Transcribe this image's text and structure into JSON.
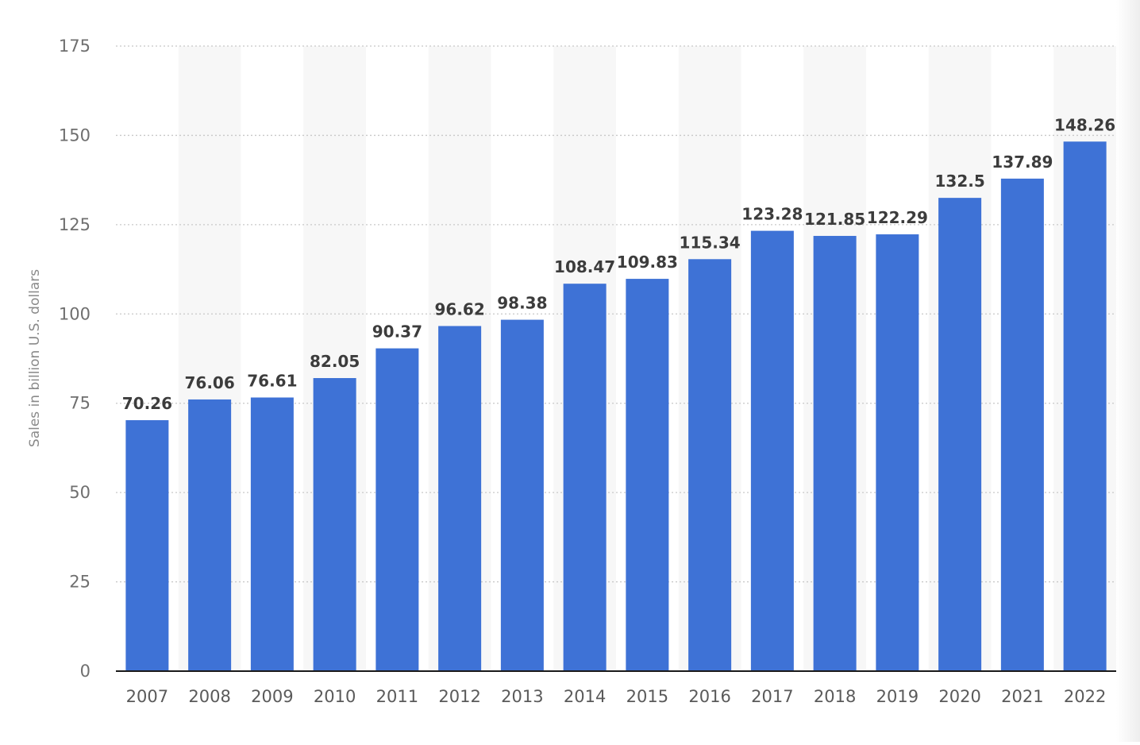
{
  "chart_data": {
    "type": "bar",
    "title": "",
    "xlabel": "",
    "ylabel": "Sales in billion U.S. dollars",
    "ylim": [
      0,
      175
    ],
    "yticks": [
      0,
      25,
      50,
      75,
      100,
      125,
      150,
      175
    ],
    "grid": "horizontal-dotted",
    "categories": [
      "2007",
      "2008",
      "2009",
      "2010",
      "2011",
      "2012",
      "2013",
      "2014",
      "2015",
      "2016",
      "2017",
      "2018",
      "2019",
      "2020",
      "2021",
      "2022"
    ],
    "values": [
      70.26,
      76.06,
      76.61,
      82.05,
      90.37,
      96.62,
      98.38,
      108.47,
      109.83,
      115.34,
      123.28,
      121.85,
      122.29,
      132.5,
      137.89,
      148.26
    ],
    "value_labels": [
      "70.26",
      "76.06",
      "76.61",
      "82.05",
      "90.37",
      "96.62",
      "98.38",
      "108.47",
      "109.83",
      "115.34",
      "123.28",
      "121.85",
      "122.29",
      "132.5",
      "137.89",
      "148.26"
    ],
    "colors": {
      "bar": "#3e72d6",
      "alt_band": "#f7f7f7",
      "grid": "#c8c8c8",
      "axis": "#1a1a1a"
    }
  }
}
